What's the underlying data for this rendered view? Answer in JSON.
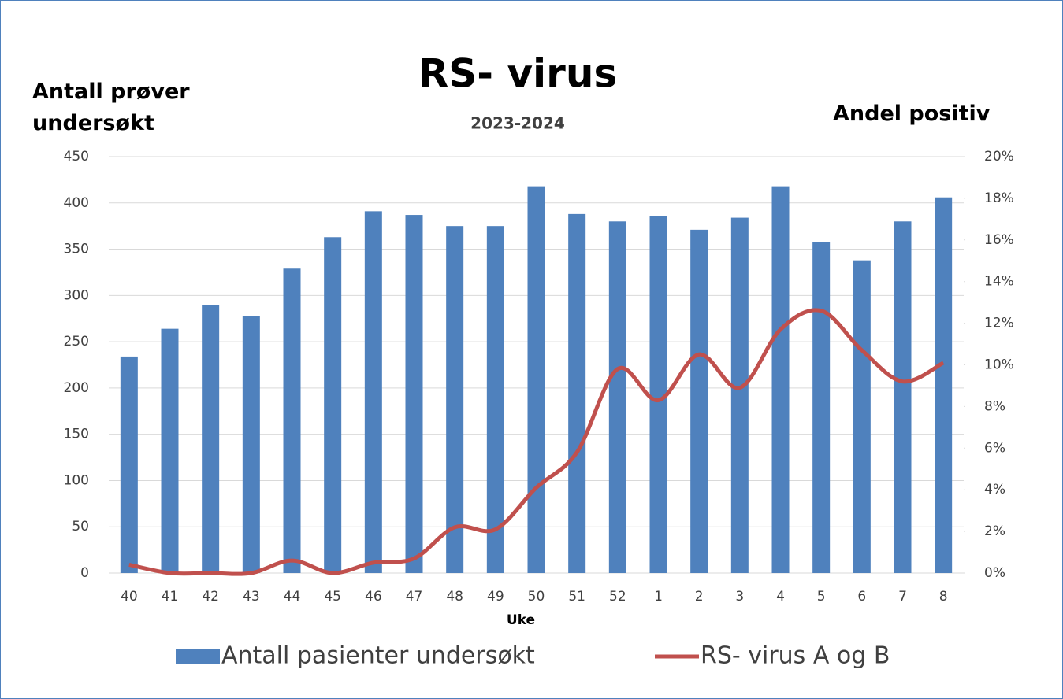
{
  "chart_data": {
    "type": "bar",
    "title": "RS- virus",
    "subtitle": "2023-2024",
    "y_label": "Antall prøver undersøkt",
    "y2_label": "Andel positiv",
    "x_label": "Uke",
    "categories": [
      "40",
      "41",
      "42",
      "43",
      "44",
      "45",
      "46",
      "47",
      "48",
      "49",
      "50",
      "51",
      "52",
      "1",
      "2",
      "3",
      "4",
      "5",
      "6",
      "7",
      "8"
    ],
    "series": [
      {
        "name": "Antall pasienter undersøkt",
        "type": "bar",
        "color": "#4f81bd",
        "values": [
          234,
          264,
          290,
          278,
          329,
          363,
          391,
          387,
          375,
          375,
          418,
          388,
          380,
          386,
          371,
          384,
          418,
          358,
          338,
          380,
          406
        ]
      },
      {
        "name": "RS- virus A og B",
        "type": "line",
        "axis": "y2",
        "color": "#c0504d",
        "values": [
          0.4,
          0,
          0,
          0,
          0.6,
          0,
          0.5,
          0.7,
          2.2,
          2.1,
          4.1,
          5.8,
          9.8,
          8.3,
          10.5,
          8.9,
          11.7,
          12.6,
          10.7,
          9.2,
          10.1
        ]
      }
    ],
    "ylim": [
      0,
      450
    ],
    "yticks": [
      0,
      50,
      100,
      150,
      200,
      250,
      300,
      350,
      400,
      450
    ],
    "y2lim": [
      0,
      20
    ],
    "y2ticks": [
      {
        "value": 0,
        "label": "0%"
      },
      {
        "value": 2,
        "label": "2%"
      },
      {
        "value": 4,
        "label": "4%"
      },
      {
        "value": 6,
        "label": "6%"
      },
      {
        "value": 8,
        "label": "8%"
      },
      {
        "value": 10,
        "label": "10%"
      },
      {
        "value": 12,
        "label": "12%"
      },
      {
        "value": 14,
        "label": "14%"
      },
      {
        "value": 16,
        "label": "16%"
      },
      {
        "value": 18,
        "label": "18%"
      },
      {
        "value": 20,
        "label": "20%"
      }
    ],
    "grid": true,
    "legend": "bottom"
  }
}
